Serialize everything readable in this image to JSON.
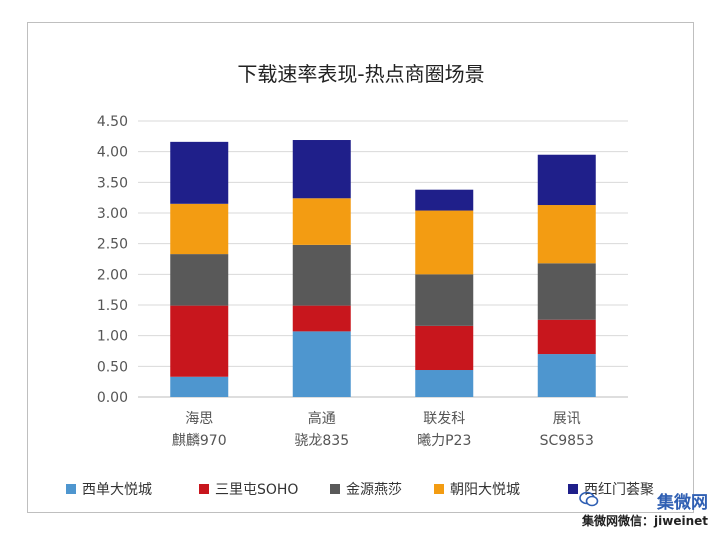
{
  "chart_data": {
    "type": "bar",
    "stacked": true,
    "title": "下载速率表现-热点商圈场景",
    "categories": [
      [
        "海思",
        "麒麟970"
      ],
      [
        "高通",
        "骁龙835"
      ],
      [
        "联发科",
        "曦力P23"
      ],
      [
        "展讯",
        "SC9853"
      ]
    ],
    "series": [
      {
        "name": "西单大悦城",
        "color": "#4e96cf",
        "values": [
          0.33,
          1.07,
          0.44,
          0.7
        ]
      },
      {
        "name": "三里屯SOHO",
        "color": "#c8161d",
        "values": [
          1.16,
          0.42,
          0.72,
          0.56
        ]
      },
      {
        "name": "金源燕莎",
        "color": "#595959",
        "values": [
          0.84,
          0.99,
          0.84,
          0.92
        ]
      },
      {
        "name": "朝阳大悦城",
        "color": "#f39c12",
        "values": [
          0.82,
          0.76,
          1.04,
          0.95
        ]
      },
      {
        "name": "西红门荟聚",
        "color": "#1f1f8a",
        "values": [
          1.01,
          0.95,
          0.34,
          0.82
        ]
      }
    ],
    "ylim": [
      0,
      4.5
    ],
    "yticks": [
      "0.00",
      "0.50",
      "1.00",
      "1.50",
      "2.00",
      "2.50",
      "3.00",
      "3.50",
      "4.00",
      "4.50"
    ],
    "grid": true,
    "legend_position": "bottom"
  },
  "watermark": {
    "brand": "集微网",
    "line": "集微网微信：jiweinet"
  }
}
